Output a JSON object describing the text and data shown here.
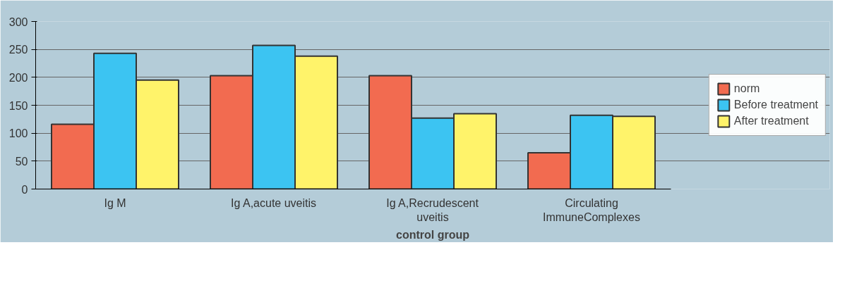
{
  "chart_data": {
    "type": "bar",
    "xlabel": "control group",
    "categories": [
      "Ig M",
      "Ig A,acute uveitis",
      "Ig A,Recrudescent\nuveitis",
      "Circulating\nImmuneComplexes"
    ],
    "series": [
      {
        "name": "norm",
        "color": "#f26b50",
        "values": [
          116,
          203,
          203,
          65
        ]
      },
      {
        "name": "Before treatment",
        "color": "#3cc4f2",
        "values": [
          243,
          257,
          127,
          132
        ]
      },
      {
        "name": "After treatment",
        "color": "#fff36a",
        "values": [
          195,
          238,
          135,
          130
        ]
      }
    ],
    "ylim": [
      0,
      300
    ],
    "yticks": [
      0,
      50,
      100,
      150,
      200,
      250,
      300
    ],
    "grid": "y",
    "legend": "right"
  }
}
